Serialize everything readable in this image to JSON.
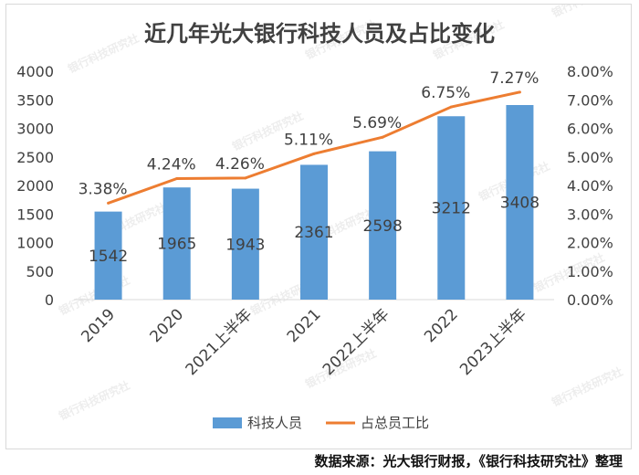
{
  "chart_data": {
    "type": "bar",
    "title": "近几年光大银行科技人员及占比变化",
    "categories": [
      "2019",
      "2020",
      "2021上半年",
      "2021",
      "2022上半年",
      "2022",
      "2023上半年"
    ],
    "series": [
      {
        "name": "科技人员",
        "type": "bar",
        "axis": "left",
        "values": [
          1542,
          1965,
          1943,
          2361,
          2598,
          3212,
          3408
        ],
        "labels": [
          "1542",
          "1965",
          "1943",
          "2361",
          "2598",
          "3212",
          "3408"
        ],
        "color": "#5b9bd5"
      },
      {
        "name": "占总员工比",
        "type": "line",
        "axis": "right",
        "values": [
          3.38,
          4.24,
          4.26,
          5.11,
          5.69,
          6.75,
          7.27
        ],
        "labels": [
          "3.38%",
          "4.24%",
          "4.26%",
          "5.11%",
          "5.69%",
          "6.75%",
          "7.27%"
        ],
        "color": "#ed7d31"
      }
    ],
    "y_left": {
      "range": [
        0,
        4000
      ],
      "ticks": [
        "0",
        "500",
        "1000",
        "1500",
        "2000",
        "2500",
        "3000",
        "3500",
        "4000"
      ]
    },
    "y_right": {
      "range": [
        0,
        8
      ],
      "ticks": [
        "0.00%",
        "1.00%",
        "2.00%",
        "3.00%",
        "4.00%",
        "5.00%",
        "6.00%",
        "7.00%",
        "8.00%"
      ]
    },
    "grid": false,
    "legend_position": "bottom"
  },
  "watermark": "银行科技研究社",
  "source_note": "数据来源：光大银行财报，《银行科技研究社》整理"
}
